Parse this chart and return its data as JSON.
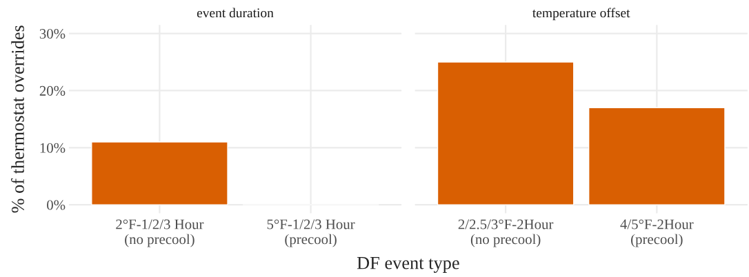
{
  "chart_data": [
    {
      "type": "bar",
      "title": "event duration",
      "ylabel": "% of thermostat overrides",
      "xlabel": "DF event type",
      "categories": [
        "2°F-1/2/3 Hour\n(no precool)",
        "5°F-1/2/3 Hour\n(precool)"
      ],
      "values": [
        11,
        0
      ],
      "color": "#d95f02",
      "ylim": [
        -1.5,
        31.5
      ],
      "yticks": [
        {
          "value": 0,
          "label": "0%"
        },
        {
          "value": 10,
          "label": "10%"
        },
        {
          "value": 20,
          "label": "20%"
        },
        {
          "value": 30,
          "label": "30%"
        }
      ],
      "grid": true
    },
    {
      "type": "bar",
      "title": "temperature offset",
      "categories": [
        "2/2.5/3°F-2Hour\n(no precool)",
        "4/5°F-2Hour\n(precool)"
      ],
      "values": [
        25,
        17
      ],
      "color": "#d95f02",
      "ylim": [
        -1.5,
        31.5
      ],
      "yticks": [
        {
          "value": 0,
          "label": null
        },
        {
          "value": 10,
          "label": null
        },
        {
          "value": 20,
          "label": null
        },
        {
          "value": 30,
          "label": null
        }
      ],
      "grid": true,
      "tick_labels": "x"
    }
  ]
}
